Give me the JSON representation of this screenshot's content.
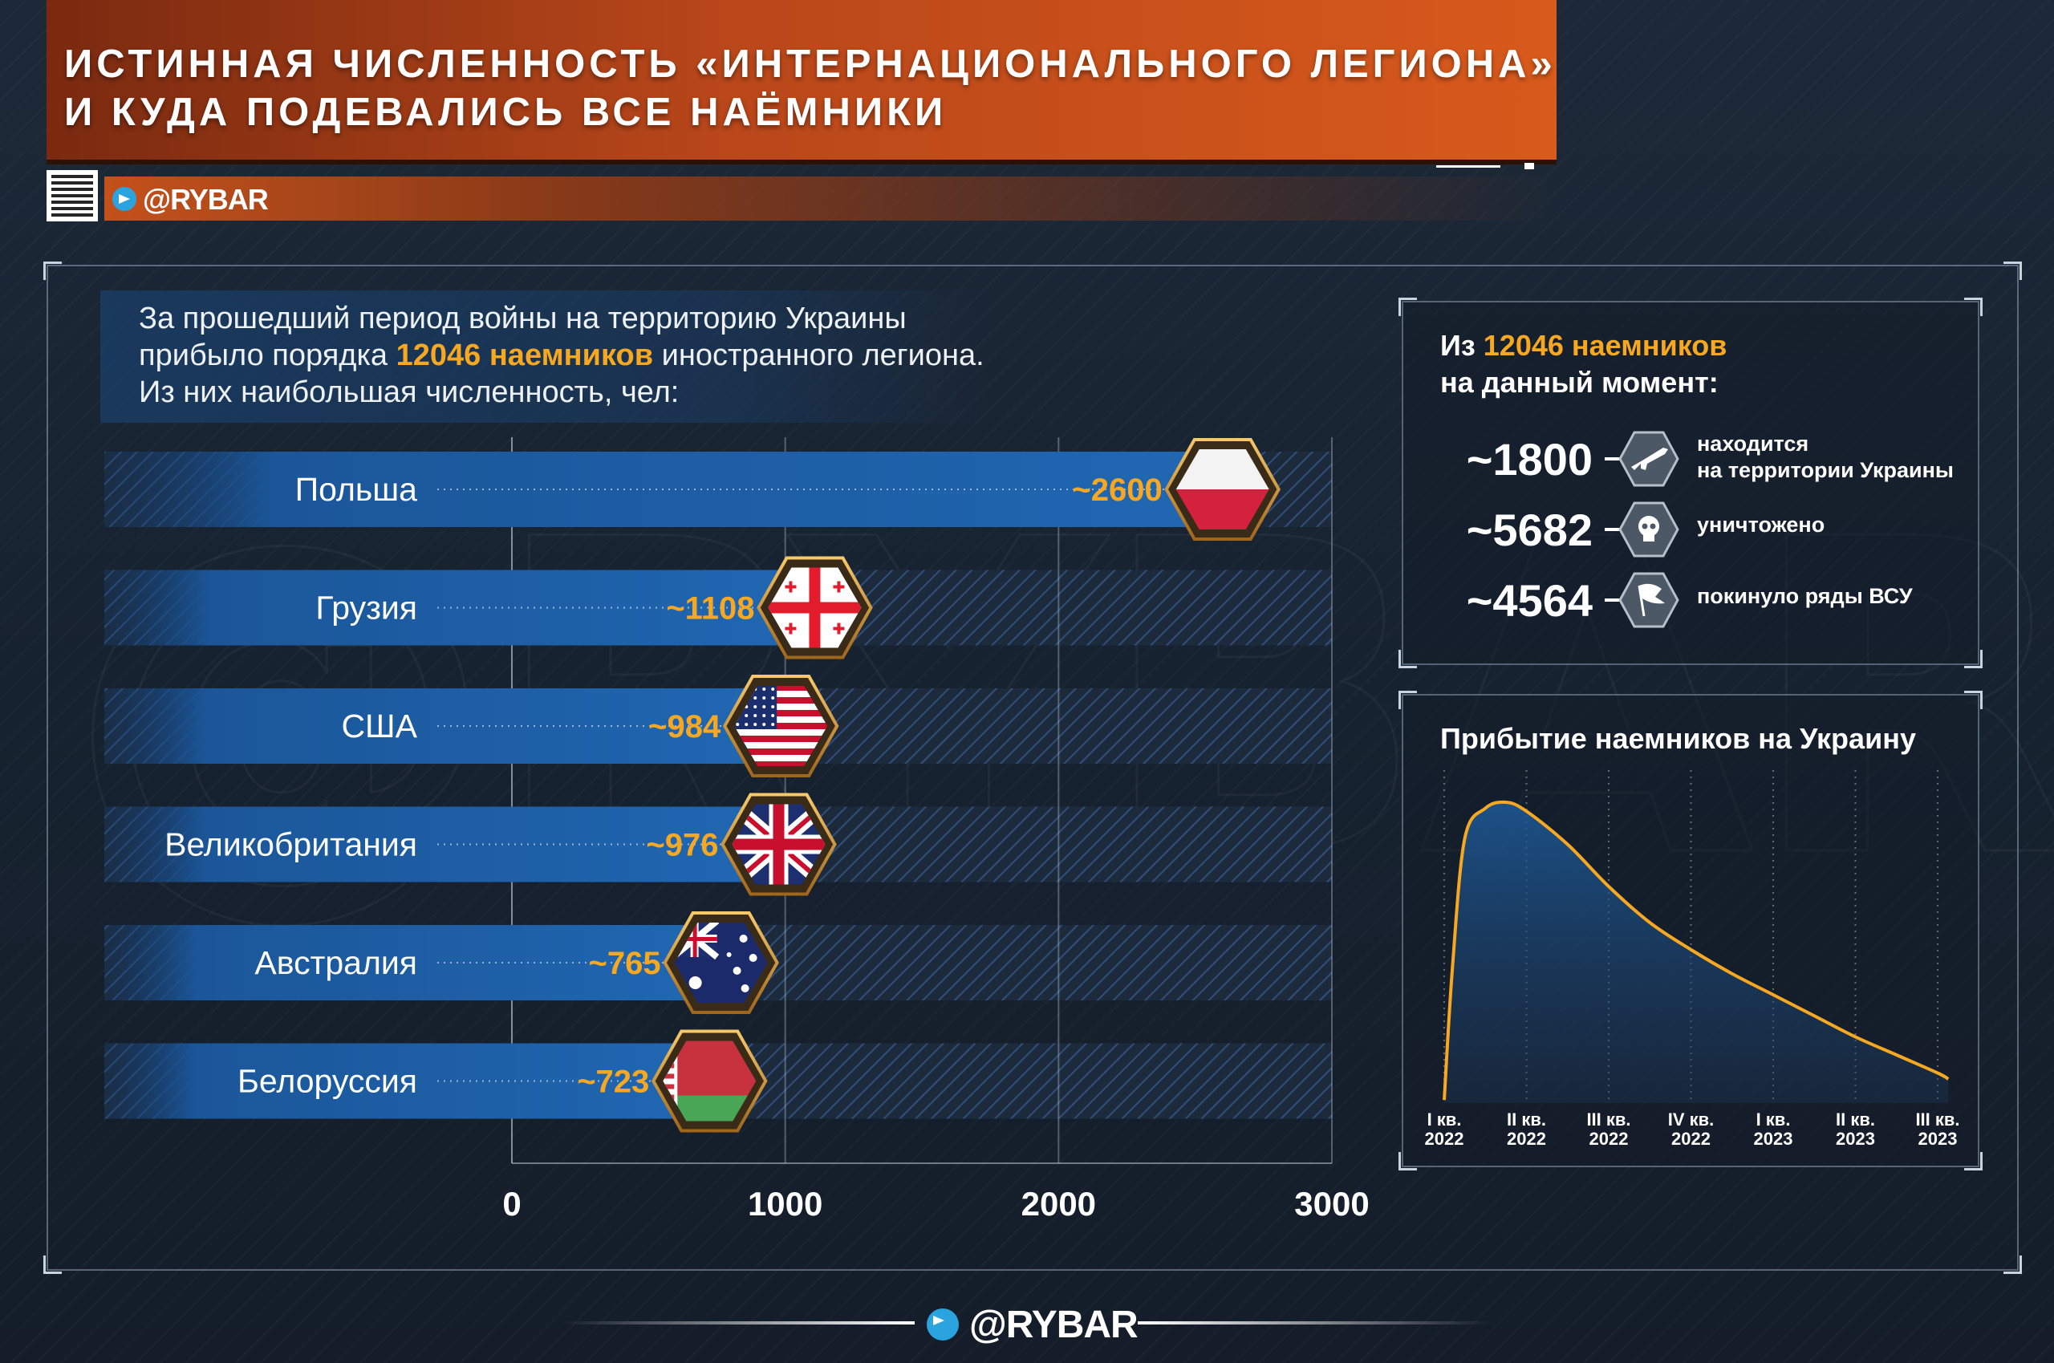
{
  "header": {
    "title": "ИСТИННАЯ ЧИСЛЕННОСТЬ «ИНТЕРНАЦИОНАЛЬНОГО ЛЕГИОНА»\nИ КУДА ПОДЕВАЛИСЬ ВСЕ НАЁМНИКИ",
    "handle": "@RYBAR"
  },
  "intro": {
    "line1": "За прошедший период войны на территорию Украины",
    "line2_pre": "прибыло порядка ",
    "line2_hl": "12046 наемников",
    "line2_post": " иностранного легиона.",
    "line3": "Из них наибольшая численность, чел:"
  },
  "stats": {
    "title_pre": "Из ",
    "title_hl": "12046 наемников",
    "title_line2": "на данный момент:",
    "items": [
      {
        "value": "~1800",
        "text": "находится\nна территории Украины",
        "icon": "rifle-icon"
      },
      {
        "value": "~5682",
        "text": "уничтожено",
        "icon": "skull-icon"
      },
      {
        "value": "~4564",
        "text": "покинуло ряды ВСУ",
        "icon": "white-flag-icon"
      }
    ]
  },
  "arrivals": {
    "title": "Прибытие наемников на Украину"
  },
  "footer": {
    "handle": "@RYBAR"
  },
  "colors": {
    "accent": "#f7a823",
    "bar": "#1f5fa8",
    "header": "#c4511b"
  },
  "chart_data": [
    {
      "type": "bar",
      "orientation": "horizontal",
      "categories": [
        "Польша",
        "Грузия",
        "США",
        "Великобритания",
        "Австралия",
        "Белоруссия"
      ],
      "values": [
        2600,
        1108,
        984,
        976,
        765,
        723
      ],
      "labels": [
        "~2600",
        "~1108",
        "~984",
        "~976",
        "~765",
        "~723"
      ],
      "flags": [
        "poland-flag-icon",
        "georgia-flag-icon",
        "usa-flag-icon",
        "uk-flag-icon",
        "australia-flag-icon",
        "belarus-flag-icon"
      ],
      "xlim": [
        0,
        3000
      ],
      "xticks": [
        "0",
        "1000",
        "2000",
        "3000"
      ],
      "grid": true
    },
    {
      "type": "area",
      "title": "Прибытие наемников на Украину",
      "categories": [
        "I кв.\n2022",
        "II кв.\n2022",
        "III кв.\n2022",
        "IV кв.\n2022",
        "I кв.\n2023",
        "II кв.\n2023",
        "III кв.\n2023"
      ],
      "x": [
        0,
        0.1,
        0.25,
        0.5,
        0.75,
        1,
        1.5,
        2,
        2.5,
        3,
        3.5,
        4,
        4.5,
        5,
        5.5,
        6,
        6.13
      ],
      "values": [
        0.01,
        0.45,
        0.88,
        0.98,
        1.0,
        0.97,
        0.86,
        0.72,
        0.6,
        0.51,
        0.43,
        0.36,
        0.29,
        0.22,
        0.16,
        0.1,
        0.08
      ],
      "grid": true
    }
  ]
}
